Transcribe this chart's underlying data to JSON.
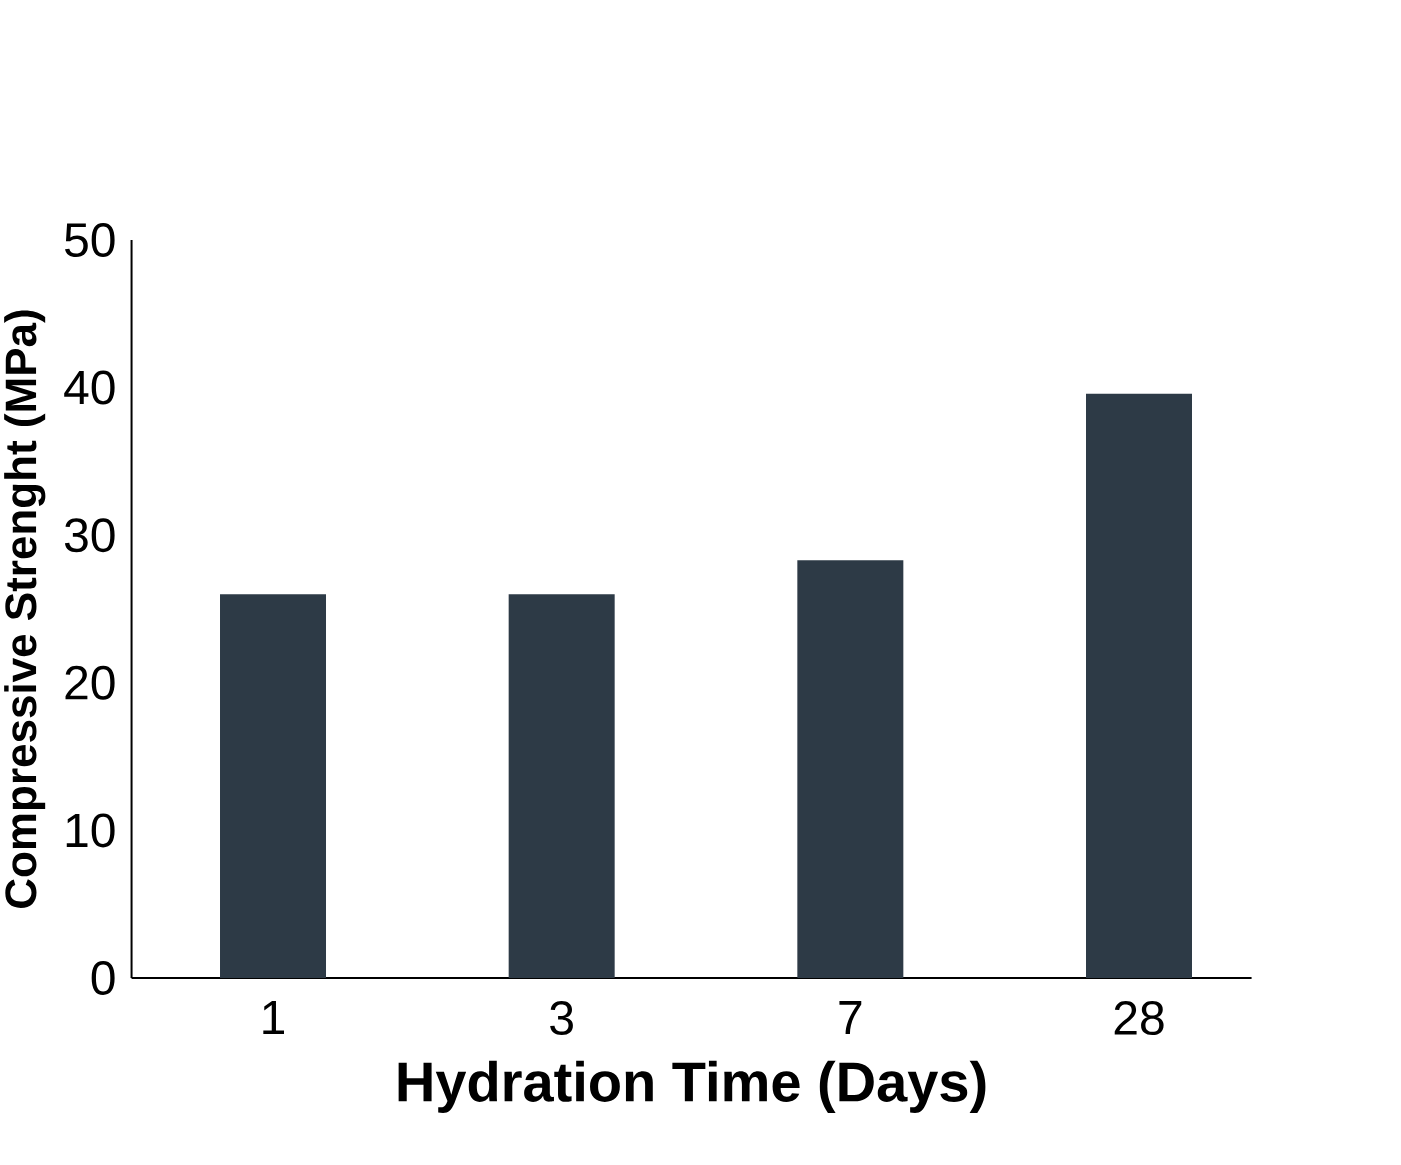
{
  "chart_data": {
    "type": "bar",
    "xlabel": "Hydration Time (Days)",
    "ylabel": "Compressive Strenght  (MPa)",
    "categories": [
      "1",
      "3",
      "7",
      "28"
    ],
    "values": [
      26,
      26,
      28.3,
      39.6
    ],
    "color": "#2d3a46",
    "ylim": [
      0,
      50
    ],
    "yticks": [
      0,
      10,
      20,
      30,
      40,
      50
    ],
    "grid": false
  }
}
